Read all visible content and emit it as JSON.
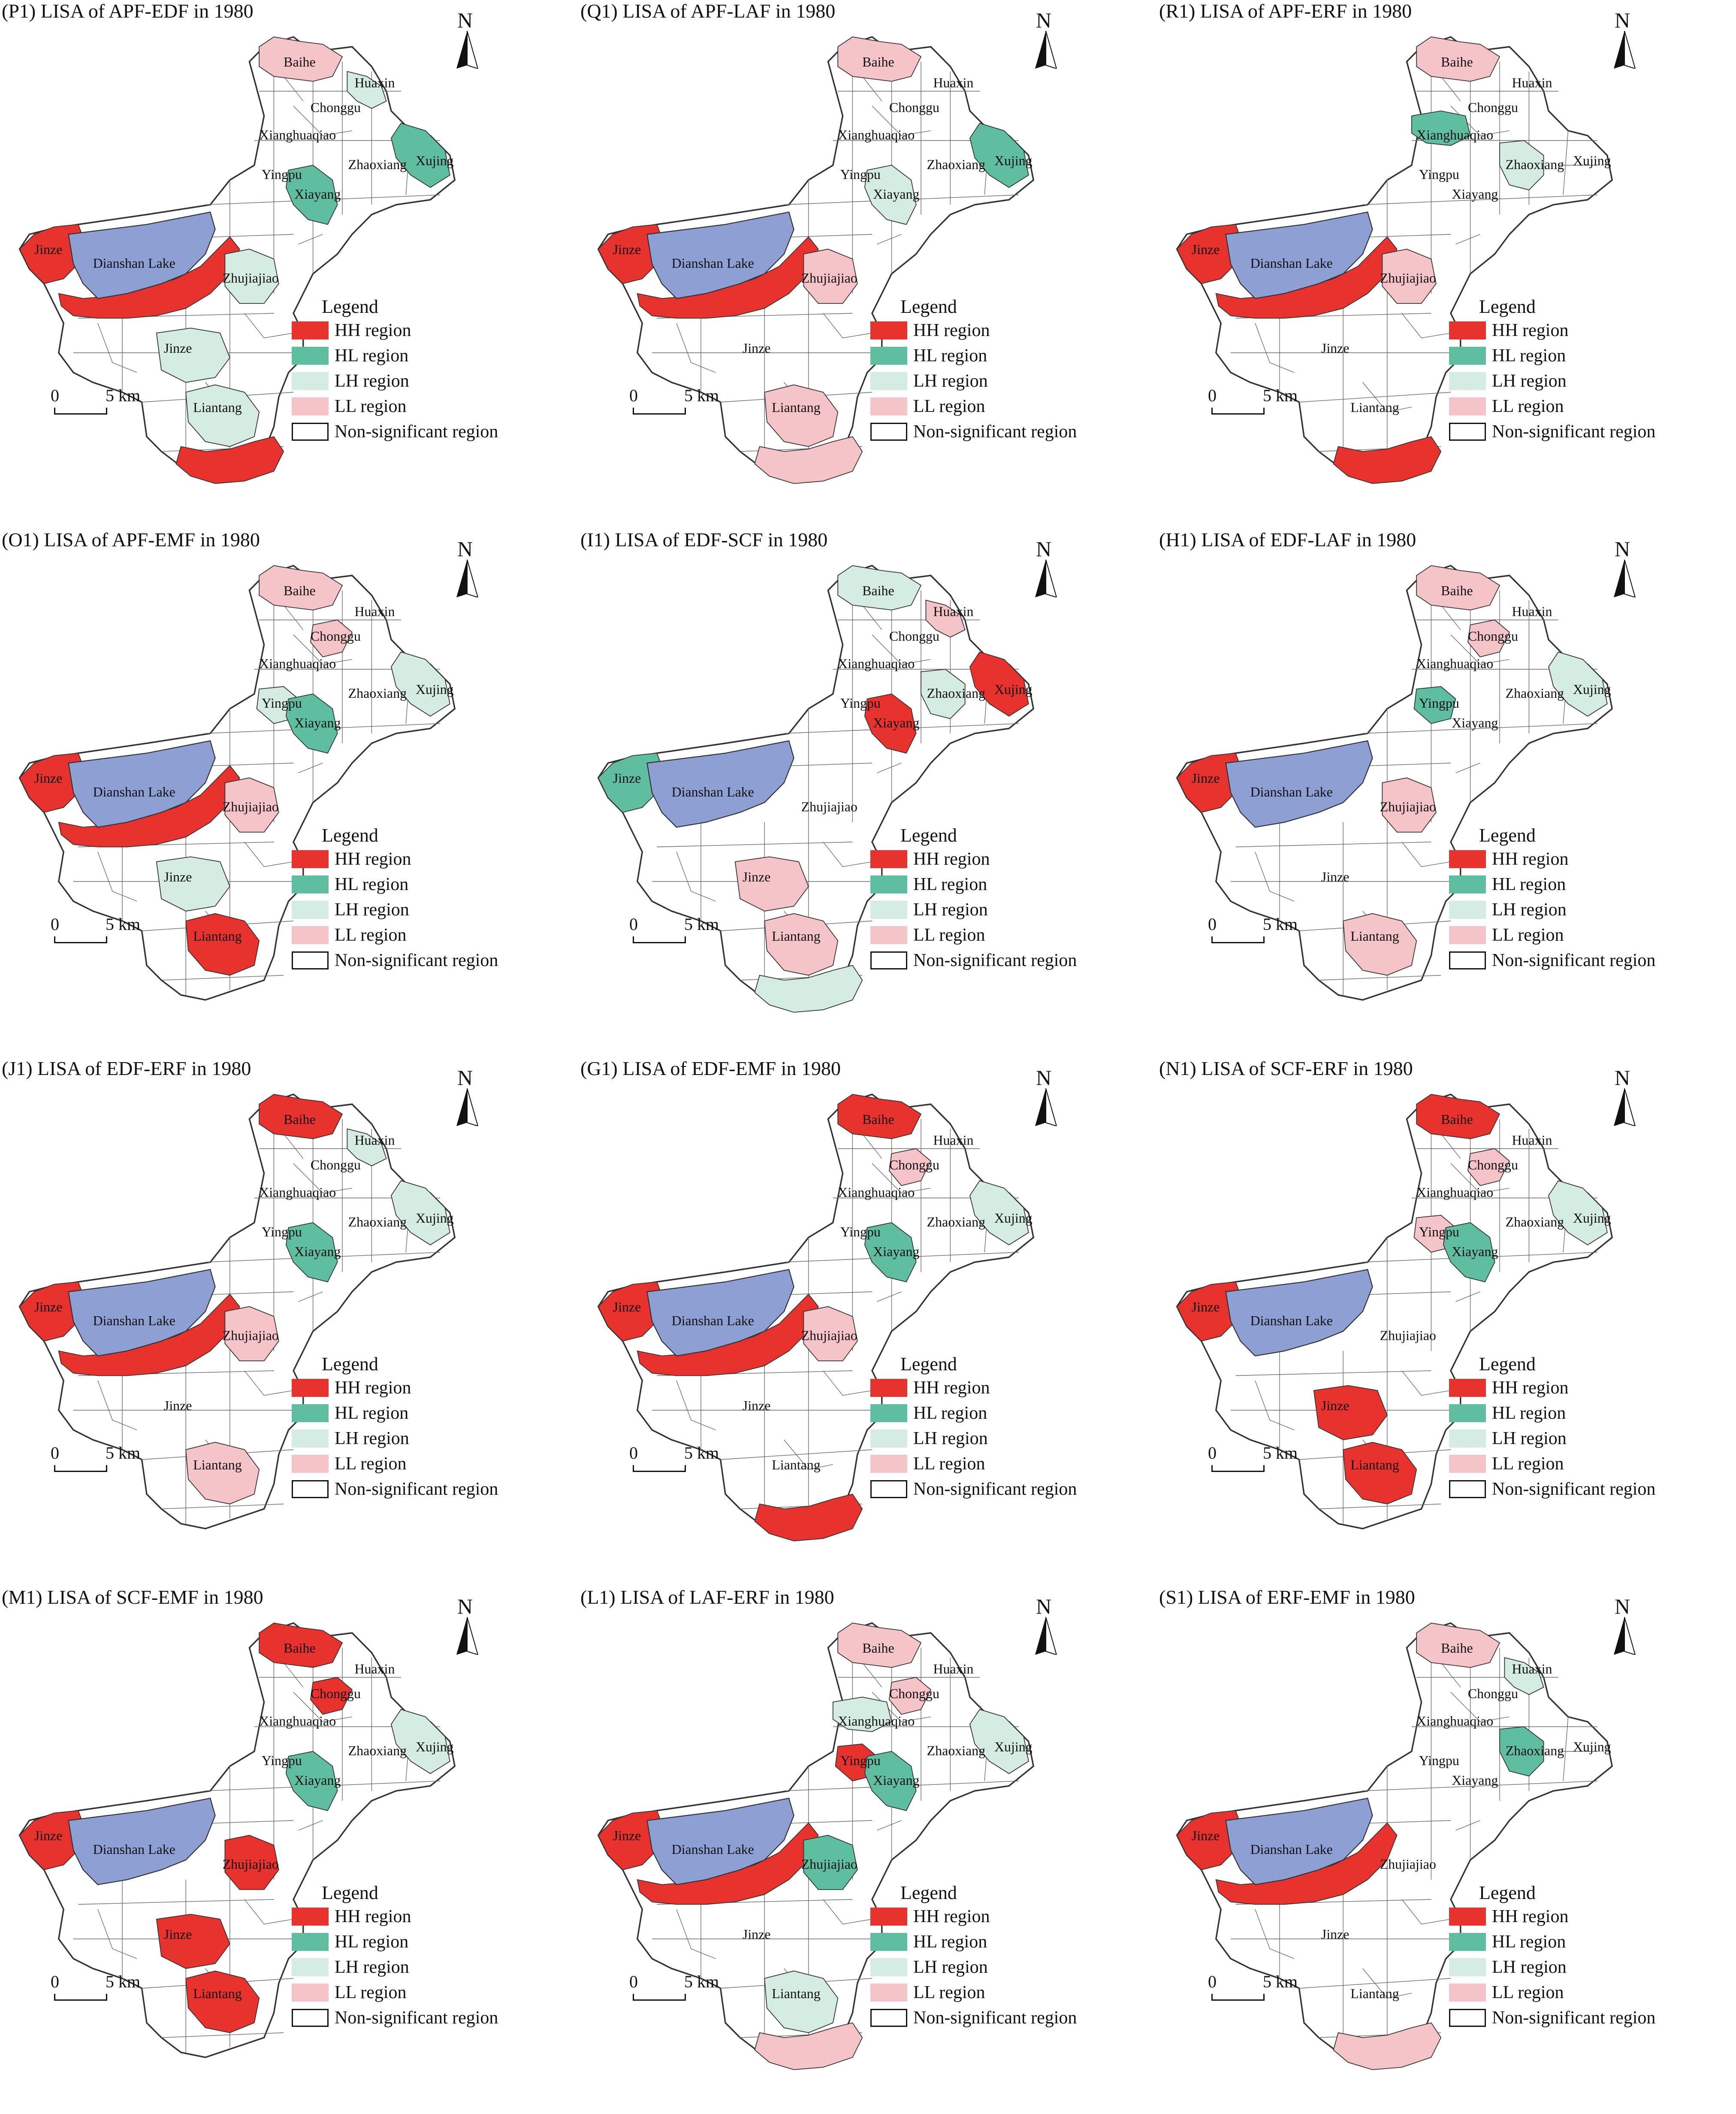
{
  "colors": {
    "HH": "#e8322e",
    "HL": "#5fbea0",
    "LH": "#d5ece3",
    "LL": "#f5c4c8",
    "NS": "#ffffff",
    "lake": "#8e9fd4",
    "border": "#333333"
  },
  "legend": {
    "title": "Legend",
    "items": [
      {
        "key": "HH",
        "label": "HH region"
      },
      {
        "key": "HL",
        "label": "HL region"
      },
      {
        "key": "LH",
        "label": "LH region"
      },
      {
        "key": "LL",
        "label": "LL region"
      },
      {
        "key": "NS",
        "label": "Non-significant region"
      }
    ]
  },
  "north_label": "N",
  "scale": {
    "zero": "0",
    "five": "5 km"
  },
  "place_names": {
    "baihe": "Baihe",
    "huaxin": "Huaxin",
    "chonggu": "Chonggu",
    "xianghuaqiao": "Xianghuaqiao",
    "xujing": "Xujing",
    "zhaoxiang": "Zhaoxiang",
    "yingpu": "Yingpu",
    "xiayang": "Xiayang",
    "jinze_west": "Jinze",
    "dianshan": "Dianshan Lake",
    "zhujiajiao": "Zhujiajiao",
    "jinze_south": "Jinze",
    "liantang": "Liantang"
  },
  "panels": [
    {
      "title": "(P1) LISA of APF-EDF in 1980",
      "regions": {
        "baihe": "LL",
        "huaxin": "LH",
        "xujing": "HL",
        "xiayang": "HL",
        "zhujiajiao": "LH",
        "jinze_west": "HH",
        "dianshan_south": "HH",
        "jinze_south": "LH",
        "liantang": "LH",
        "liantang_south": "HH"
      }
    },
    {
      "title": "(Q1) LISA of APF-LAF in 1980",
      "regions": {
        "baihe": "LL",
        "xujing": "HL",
        "xiayang": "LH",
        "zhujiajiao": "LL",
        "jinze_west": "HH",
        "dianshan_south": "HH",
        "liantang": "LL",
        "liantang_south": "LL"
      }
    },
    {
      "title": "(R1) LISA of APF-ERF in 1980",
      "regions": {
        "baihe": "LL",
        "xianghuaqiao": "HL",
        "zhaoxiang": "LH",
        "zhujiajiao": "LL",
        "jinze_west": "HH",
        "dianshan_south": "HH",
        "liantang_south": "HH"
      }
    },
    {
      "title": "(O1) LISA of APF-EMF in 1980",
      "regions": {
        "baihe": "LL",
        "chonggu": "LL",
        "xujing": "LH",
        "xiayang": "HL",
        "yingpu": "LH",
        "jinze_west": "HH",
        "dianshan_south": "HH",
        "zhujiajiao": "LL",
        "jinze_south": "LH",
        "liantang": "HH"
      }
    },
    {
      "title": "(I1) LISA of EDF-SCF in 1980",
      "regions": {
        "baihe": "LH",
        "huaxin": "LL",
        "xujing": "HH",
        "xiayang": "HH",
        "zhaoxiang": "LH",
        "jinze_west": "HL",
        "jinze_south": "LL",
        "liantang": "LL",
        "liantang_south": "LH"
      }
    },
    {
      "title": "(H1) LISA of EDF-LAF in 1980",
      "regions": {
        "baihe": "LL",
        "chonggu": "LL",
        "xujing": "LH",
        "yingpu": "HL",
        "jinze_west": "HH",
        "zhujiajiao": "LL",
        "liantang": "LL"
      }
    },
    {
      "title": "(J1) LISA of EDF-ERF in 1980",
      "regions": {
        "baihe": "HH",
        "huaxin": "LH",
        "xujing": "LH",
        "xiayang": "HL",
        "jinze_west": "HH",
        "dianshan_south": "HH",
        "zhujiajiao": "LL",
        "liantang": "LL"
      }
    },
    {
      "title": "(G1) LISA of EDF-EMF in 1980",
      "regions": {
        "baihe": "HH",
        "chonggu": "LL",
        "xujing": "LH",
        "xiayang": "HL",
        "jinze_west": "HH",
        "dianshan_south": "HH",
        "zhujiajiao": "LL",
        "liantang_south": "HH"
      }
    },
    {
      "title": "(N1) LISA of SCF-ERF in 1980",
      "regions": {
        "baihe": "HH",
        "chonggu": "LL",
        "xujing": "LH",
        "xiayang": "HL",
        "jinze_west": "HH",
        "yingpu": "LL",
        "jinze_south": "HH",
        "liantang": "HH"
      }
    },
    {
      "title": "(M1) LISA of SCF-EMF in 1980",
      "regions": {
        "baihe": "HH",
        "chonggu": "HH",
        "xujing": "LH",
        "xiayang": "HL",
        "jinze_west": "HH",
        "zhujiajiao": "HH",
        "jinze_south": "HH",
        "liantang": "HH"
      }
    },
    {
      "title": "(L1) LISA of LAF-ERF in 1980",
      "regions": {
        "baihe": "LL",
        "xianghuaqiao": "LH",
        "chonggu": "LL",
        "xujing": "LH",
        "yingpu": "HH",
        "xiayang": "HL",
        "jinze_west": "HH",
        "dianshan_south": "HH",
        "zhujiajiao": "HL",
        "liantang": "LH",
        "liantang_south": "LL"
      }
    },
    {
      "title": "(S1) LISA of ERF-EMF in 1980",
      "regions": {
        "baihe": "LL",
        "huaxin": "LH",
        "zhaoxiang": "HL",
        "jinze_west": "HH",
        "dianshan_south": "HH",
        "liantang_south": "LL"
      }
    }
  ]
}
